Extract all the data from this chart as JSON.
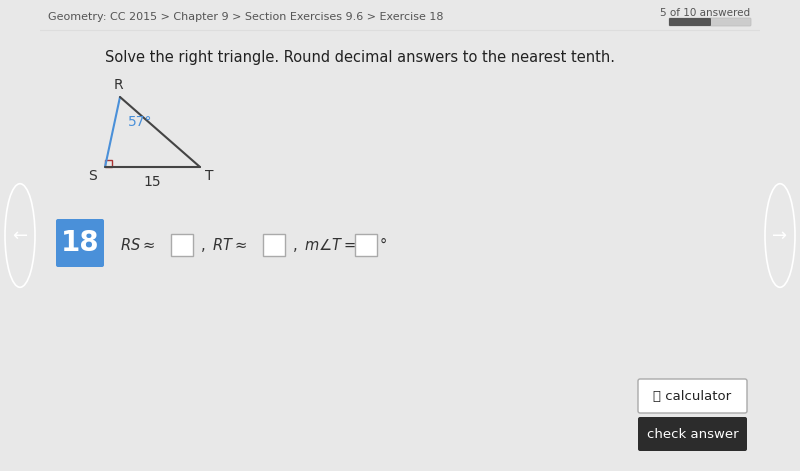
{
  "bg_color": "#e8e8e8",
  "main_bg": "#f5f5f5",
  "header_text": "Geometry: CC 2015 > Chapter 9 > Section Exercises 9.6 > Exercise 18",
  "header_color": "#555555",
  "progress_text": "5 of 10 answered",
  "question_text": "Solve the right triangle. Round decimal answers to the nearest tenth.",
  "exercise_number": "18",
  "exercise_bg": "#4a90d9",
  "nav_left": "←",
  "nav_right": "→",
  "nav_bg": "#3a3f47",
  "calculator_text": "  calculator",
  "check_answer_text": "check answer",
  "check_bg": "#2c2c2c",
  "progress_bar_fill": "#555555",
  "progress_bar_bg": "#cccccc",
  "triangle_blue": "#4a90d9",
  "triangle_dark": "#444444",
  "right_angle_color": "#aa3333"
}
